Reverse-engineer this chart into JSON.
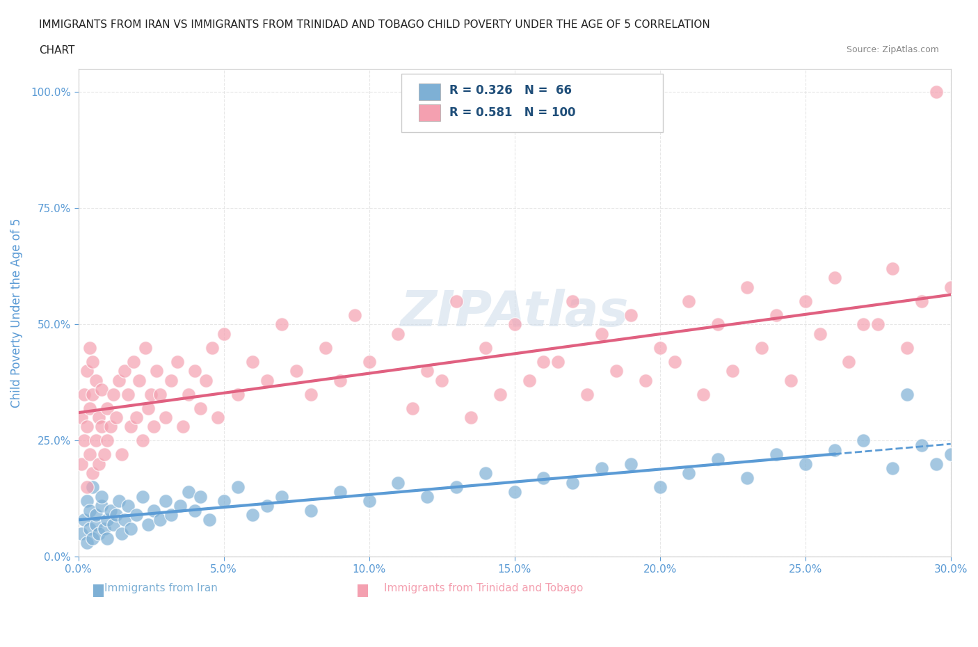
{
  "title_line1": "IMMIGRANTS FROM IRAN VS IMMIGRANTS FROM TRINIDAD AND TOBAGO CHILD POVERTY UNDER THE AGE OF 5 CORRELATION",
  "title_line2": "CHART",
  "source_text": "Source: ZipAtlas.com",
  "xlabel": "",
  "ylabel": "Child Poverty Under the Age of 5",
  "xlim": [
    0.0,
    0.3
  ],
  "ylim": [
    0.0,
    1.05
  ],
  "xticks": [
    0.0,
    0.05,
    0.1,
    0.15,
    0.2,
    0.25,
    0.3
  ],
  "xticklabels": [
    "0.0%",
    "5.0%",
    "10.0%",
    "15.0%",
    "20.0%",
    "25.0%",
    "30.0%"
  ],
  "yticks": [
    0.0,
    0.25,
    0.5,
    0.75,
    1.0
  ],
  "yticklabels": [
    "0.0%",
    "25.0%",
    "50.0%",
    "75.0%",
    "100.0%"
  ],
  "iran_color": "#7eb0d5",
  "tt_color": "#f4a0b0",
  "iran_R": 0.326,
  "iran_N": 66,
  "tt_R": 0.581,
  "tt_N": 100,
  "watermark": "ZIPAtlas",
  "watermark_color": "#c8d8e8",
  "iran_scatter_x": [
    0.001,
    0.002,
    0.003,
    0.003,
    0.004,
    0.004,
    0.005,
    0.005,
    0.006,
    0.006,
    0.007,
    0.008,
    0.008,
    0.009,
    0.01,
    0.01,
    0.011,
    0.012,
    0.013,
    0.014,
    0.015,
    0.016,
    0.017,
    0.018,
    0.02,
    0.022,
    0.024,
    0.026,
    0.028,
    0.03,
    0.032,
    0.035,
    0.038,
    0.04,
    0.042,
    0.045,
    0.05,
    0.055,
    0.06,
    0.065,
    0.07,
    0.08,
    0.09,
    0.1,
    0.11,
    0.12,
    0.13,
    0.14,
    0.15,
    0.16,
    0.17,
    0.18,
    0.19,
    0.2,
    0.21,
    0.22,
    0.23,
    0.24,
    0.25,
    0.26,
    0.27,
    0.28,
    0.29,
    0.3,
    0.295,
    0.285
  ],
  "iran_scatter_y": [
    0.05,
    0.08,
    0.03,
    0.12,
    0.06,
    0.1,
    0.04,
    0.15,
    0.07,
    0.09,
    0.05,
    0.11,
    0.13,
    0.06,
    0.04,
    0.08,
    0.1,
    0.07,
    0.09,
    0.12,
    0.05,
    0.08,
    0.11,
    0.06,
    0.09,
    0.13,
    0.07,
    0.1,
    0.08,
    0.12,
    0.09,
    0.11,
    0.14,
    0.1,
    0.13,
    0.08,
    0.12,
    0.15,
    0.09,
    0.11,
    0.13,
    0.1,
    0.14,
    0.12,
    0.16,
    0.13,
    0.15,
    0.18,
    0.14,
    0.17,
    0.16,
    0.19,
    0.2,
    0.15,
    0.18,
    0.21,
    0.17,
    0.22,
    0.2,
    0.23,
    0.25,
    0.19,
    0.24,
    0.22,
    0.2,
    0.35
  ],
  "tt_scatter_x": [
    0.001,
    0.001,
    0.002,
    0.002,
    0.003,
    0.003,
    0.003,
    0.004,
    0.004,
    0.004,
    0.005,
    0.005,
    0.005,
    0.006,
    0.006,
    0.007,
    0.007,
    0.008,
    0.008,
    0.009,
    0.01,
    0.01,
    0.011,
    0.012,
    0.013,
    0.014,
    0.015,
    0.016,
    0.017,
    0.018,
    0.019,
    0.02,
    0.021,
    0.022,
    0.023,
    0.024,
    0.025,
    0.026,
    0.027,
    0.028,
    0.03,
    0.032,
    0.034,
    0.036,
    0.038,
    0.04,
    0.042,
    0.044,
    0.046,
    0.048,
    0.05,
    0.055,
    0.06,
    0.065,
    0.07,
    0.075,
    0.08,
    0.085,
    0.09,
    0.095,
    0.1,
    0.11,
    0.12,
    0.13,
    0.14,
    0.15,
    0.16,
    0.17,
    0.18,
    0.19,
    0.2,
    0.21,
    0.22,
    0.23,
    0.24,
    0.25,
    0.26,
    0.27,
    0.28,
    0.29,
    0.3,
    0.295,
    0.285,
    0.275,
    0.265,
    0.255,
    0.245,
    0.235,
    0.225,
    0.215,
    0.205,
    0.195,
    0.185,
    0.175,
    0.165,
    0.155,
    0.145,
    0.135,
    0.125,
    0.115
  ],
  "tt_scatter_y": [
    0.2,
    0.3,
    0.25,
    0.35,
    0.15,
    0.28,
    0.4,
    0.22,
    0.32,
    0.45,
    0.18,
    0.35,
    0.42,
    0.25,
    0.38,
    0.2,
    0.3,
    0.28,
    0.36,
    0.22,
    0.25,
    0.32,
    0.28,
    0.35,
    0.3,
    0.38,
    0.22,
    0.4,
    0.35,
    0.28,
    0.42,
    0.3,
    0.38,
    0.25,
    0.45,
    0.32,
    0.35,
    0.28,
    0.4,
    0.35,
    0.3,
    0.38,
    0.42,
    0.28,
    0.35,
    0.4,
    0.32,
    0.38,
    0.45,
    0.3,
    0.48,
    0.35,
    0.42,
    0.38,
    0.5,
    0.4,
    0.35,
    0.45,
    0.38,
    0.52,
    0.42,
    0.48,
    0.4,
    0.55,
    0.45,
    0.5,
    0.42,
    0.55,
    0.48,
    0.52,
    0.45,
    0.55,
    0.5,
    0.58,
    0.52,
    0.55,
    0.6,
    0.5,
    0.62,
    0.55,
    0.58,
    1.0,
    0.45,
    0.5,
    0.42,
    0.48,
    0.38,
    0.45,
    0.4,
    0.35,
    0.42,
    0.38,
    0.4,
    0.35,
    0.42,
    0.38,
    0.35,
    0.3,
    0.38,
    0.32
  ],
  "background_color": "#ffffff",
  "grid_color": "#dddddd",
  "iran_line_color": "#5b9bd5",
  "tt_line_color": "#e06080",
  "legend_text_color": "#1f4e79",
  "axis_label_color": "#5b9bd5",
  "axis_tick_color": "#5b9bd5"
}
